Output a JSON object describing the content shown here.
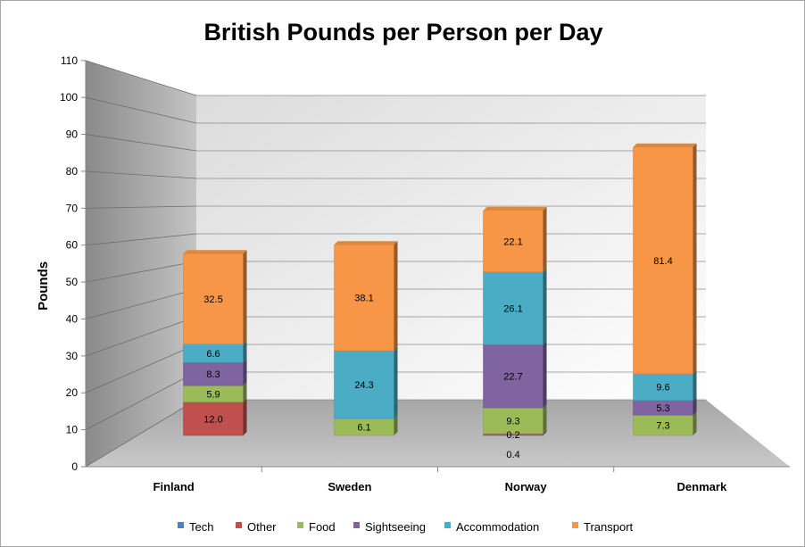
{
  "chart_data": {
    "type": "bar",
    "stacked": true,
    "three_d": true,
    "title": "British Pounds per Person per Day",
    "xlabel": "",
    "ylabel": "Pounds",
    "ylim": [
      0,
      110
    ],
    "ytick_step": 10,
    "grid": true,
    "legend_position": "bottom",
    "categories": [
      "Finland",
      "Sweden",
      "Norway",
      "Denmark"
    ],
    "series": [
      {
        "name": "Tech",
        "color": "#4f81bd",
        "values": [
          0,
          0,
          0.4,
          0
        ],
        "labels": [
          "",
          "",
          "0.4",
          ""
        ]
      },
      {
        "name": "Other",
        "color": "#c0504d",
        "values": [
          12.0,
          0,
          0.2,
          0
        ],
        "labels": [
          "12.0",
          "",
          "0.2",
          ""
        ]
      },
      {
        "name": "Food",
        "color": "#9bbb59",
        "values": [
          5.9,
          6.1,
          9.3,
          7.3
        ],
        "labels": [
          "5.9",
          "6.1",
          "9.3",
          "7.3"
        ]
      },
      {
        "name": "Sightseeing",
        "color": "#8064a2",
        "values": [
          8.3,
          0,
          22.7,
          5.3
        ],
        "labels": [
          "8.3",
          "",
          "22.7",
          "5.3"
        ]
      },
      {
        "name": "Accommodation",
        "color": "#4bacc6",
        "values": [
          6.6,
          24.3,
          26.1,
          9.6
        ],
        "labels": [
          "6.6",
          "24.3",
          "26.1",
          "9.6"
        ]
      },
      {
        "name": "Transport",
        "color": "#f79646",
        "values": [
          32.5,
          38.1,
          22.1,
          81.4
        ],
        "labels": [
          "32.5",
          "38.1",
          "22.1",
          "81.4"
        ]
      }
    ]
  }
}
